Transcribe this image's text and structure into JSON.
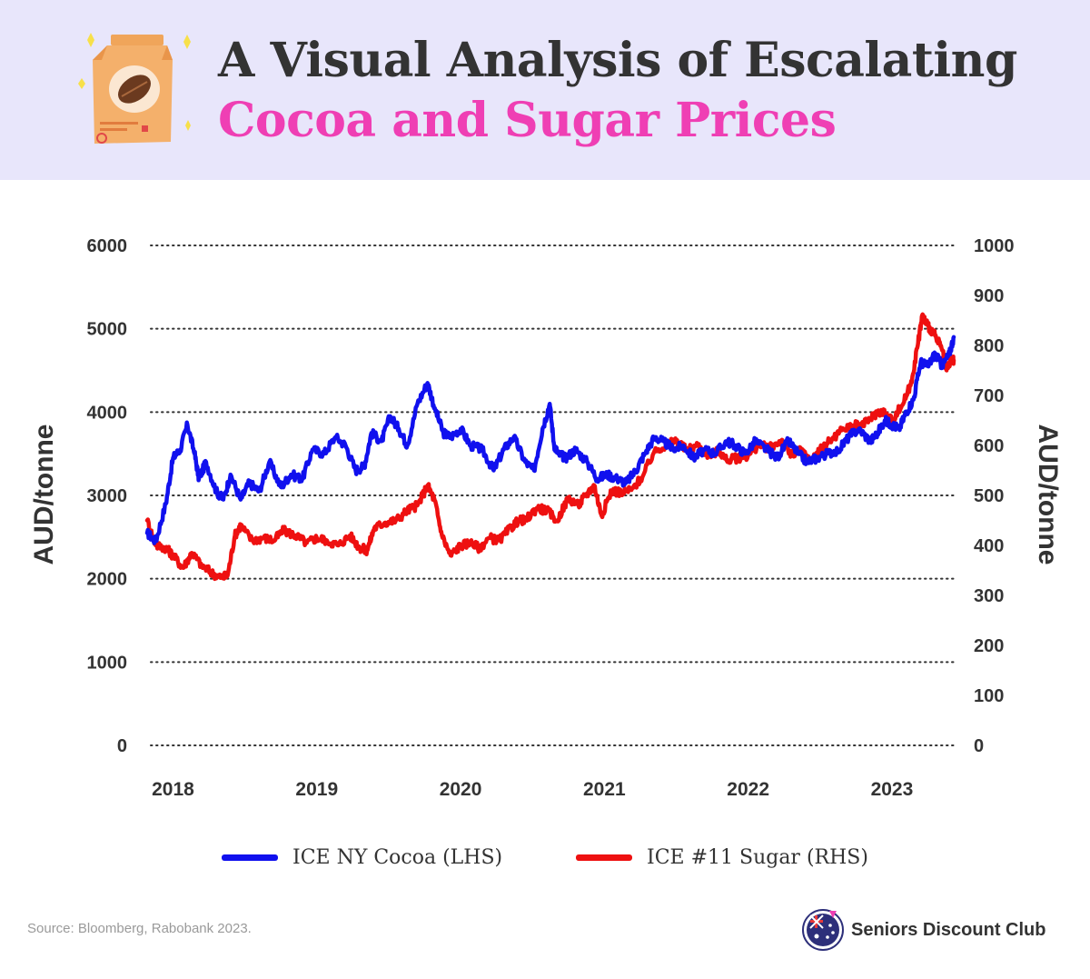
{
  "header": {
    "title_line1": "A Visual Analysis of Escalating",
    "title_line2": "Cocoa and Sugar Prices",
    "bg_color": "#e8e6fb",
    "accent_color": "#ef3fb4"
  },
  "chart_data": {
    "type": "line",
    "title": "A Visual Analysis of Escalating Cocoa and Sugar Prices",
    "ylabel_left": "AUD/tonne",
    "ylabel_right": "AUD/tonne",
    "ylim_left": [
      0,
      6000
    ],
    "ylim_right": [
      0,
      1000
    ],
    "yticks_left": [
      "0",
      "1000",
      "2000",
      "3000",
      "4000",
      "5000",
      "6000"
    ],
    "yticks_right": [
      "0",
      "100",
      "200",
      "300",
      "400",
      "500",
      "600",
      "700",
      "800",
      "900",
      "1000"
    ],
    "xlim": [
      2017.97,
      2023.58
    ],
    "xticks": [
      {
        "label": "2018",
        "value": 2018.15
      },
      {
        "label": "2019",
        "value": 2019.15
      },
      {
        "label": "2020",
        "value": 2020.15
      },
      {
        "label": "2021",
        "value": 2021.15
      },
      {
        "label": "2022",
        "value": 2022.15
      },
      {
        "label": "2023",
        "value": 2023.15
      }
    ],
    "grid": "horizontal dotted",
    "series": [
      {
        "name": "ICE NY Cocoa (LHS)",
        "axis": "left",
        "color": "#1010ee",
        "x": [
          2017.97,
          2018.03,
          2018.1,
          2018.15,
          2018.2,
          2018.25,
          2018.3,
          2018.33,
          2018.38,
          2018.45,
          2018.5,
          2018.55,
          2018.62,
          2018.68,
          2018.75,
          2018.82,
          2018.9,
          2018.97,
          2019.05,
          2019.12,
          2019.2,
          2019.28,
          2019.35,
          2019.42,
          2019.48,
          2019.53,
          2019.6,
          2019.66,
          2019.72,
          2019.78,
          2019.85,
          2019.92,
          2019.97,
          2020.03,
          2020.08,
          2020.15,
          2020.22,
          2020.3,
          2020.38,
          2020.45,
          2020.52,
          2020.6,
          2020.66,
          2020.72,
          2020.77,
          2020.8,
          2020.83,
          2020.88,
          2020.95,
          2021.03,
          2021.1,
          2021.17,
          2021.24,
          2021.3,
          2021.37,
          2021.43,
          2021.5,
          2021.56,
          2021.63,
          2021.7,
          2021.77,
          2021.85,
          2021.92,
          2022.0,
          2022.06,
          2022.13,
          2022.2,
          2022.28,
          2022.35,
          2022.43,
          2022.5,
          2022.56,
          2022.63,
          2022.7,
          2022.78,
          2022.85,
          2022.92,
          2023.0,
          2023.05,
          2023.1,
          2023.15,
          2023.2,
          2023.25,
          2023.3,
          2023.35,
          2023.4,
          2023.45,
          2023.5,
          2023.55,
          2023.58
        ],
        "values": [
          2550,
          2450,
          2900,
          3450,
          3550,
          3850,
          3500,
          3200,
          3400,
          3050,
          2950,
          3250,
          2950,
          3150,
          3050,
          3400,
          3100,
          3250,
          3200,
          3550,
          3500,
          3700,
          3600,
          3300,
          3350,
          3750,
          3650,
          3950,
          3800,
          3600,
          4100,
          4350,
          4050,
          3750,
          3700,
          3800,
          3600,
          3550,
          3300,
          3550,
          3700,
          3400,
          3300,
          3800,
          4100,
          3600,
          3500,
          3450,
          3550,
          3400,
          3200,
          3250,
          3200,
          3150,
          3300,
          3500,
          3700,
          3650,
          3550,
          3600,
          3450,
          3550,
          3500,
          3650,
          3600,
          3500,
          3650,
          3550,
          3450,
          3650,
          3500,
          3400,
          3450,
          3500,
          3550,
          3700,
          3800,
          3650,
          3750,
          3900,
          3850,
          3800,
          4000,
          4150,
          4600,
          4550,
          4700,
          4550,
          4700,
          4900
        ]
      },
      {
        "name": "ICE #11 Sugar (RHS)",
        "axis": "right",
        "color": "#ee1010",
        "x": [
          2017.97,
          2018.03,
          2018.1,
          2018.15,
          2018.22,
          2018.28,
          2018.35,
          2018.42,
          2018.48,
          2018.53,
          2018.58,
          2018.62,
          2018.7,
          2018.78,
          2018.85,
          2018.92,
          2019.0,
          2019.08,
          2019.15,
          2019.22,
          2019.3,
          2019.38,
          2019.45,
          2019.5,
          2019.55,
          2019.62,
          2019.7,
          2019.78,
          2019.85,
          2019.92,
          2019.97,
          2020.02,
          2020.08,
          2020.15,
          2020.22,
          2020.28,
          2020.35,
          2020.42,
          2020.5,
          2020.55,
          2020.6,
          2020.68,
          2020.75,
          2020.82,
          2020.9,
          2020.97,
          2021.02,
          2021.08,
          2021.13,
          2021.2,
          2021.28,
          2021.35,
          2021.42,
          2021.5,
          2021.58,
          2021.65,
          2021.72,
          2021.8,
          2021.88,
          2021.95,
          2022.0,
          2022.08,
          2022.15,
          2022.22,
          2022.3,
          2022.38,
          2022.45,
          2022.52,
          2022.58,
          2022.65,
          2022.72,
          2022.8,
          2022.88,
          2022.95,
          2023.02,
          2023.08,
          2023.15,
          2023.22,
          2023.28,
          2023.33,
          2023.36,
          2023.4,
          2023.45,
          2023.5,
          2023.53,
          2023.56,
          2023.58
        ],
        "values": [
          450,
          400,
          395,
          380,
          355,
          385,
          360,
          345,
          335,
          340,
          420,
          440,
          410,
          415,
          410,
          430,
          420,
          405,
          415,
          410,
          400,
          420,
          395,
          390,
          435,
          445,
          450,
          470,
          480,
          520,
          490,
          420,
          380,
          400,
          405,
          395,
          415,
          410,
          435,
          450,
          450,
          475,
          470,
          450,
          495,
          480,
          500,
          520,
          460,
          510,
          505,
          515,
          540,
          590,
          600,
          610,
          590,
          600,
          580,
          590,
          570,
          575,
          580,
          600,
          595,
          610,
          580,
          590,
          570,
          590,
          610,
          630,
          640,
          640,
          660,
          670,
          650,
          680,
          720,
          800,
          860,
          840,
          820,
          790,
          750,
          770,
          770
        ]
      }
    ]
  },
  "legend": [
    {
      "label": "ICE NY Cocoa (LHS)",
      "color": "#1010ee"
    },
    {
      "label": "ICE #11 Sugar (RHS)",
      "color": "#ee1010"
    }
  ],
  "footer": {
    "source": "Source: Bloomberg, Rabobank 2023.",
    "brand": "Seniors Discount Club"
  }
}
